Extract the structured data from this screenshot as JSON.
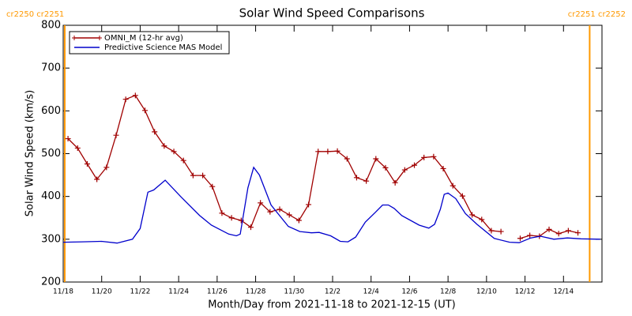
{
  "chart_data": {
    "type": "line",
    "title": "Solar Wind Speed Comparisons",
    "x_label": "Month/Day from 2021-11-18 to 2021-12-15 (UT)",
    "y_label": "Solar Wind Speed (km/s)",
    "xlim": [
      0,
      28
    ],
    "xticks": [
      {
        "value": 0,
        "label": "11/18"
      },
      {
        "value": 2,
        "label": "11/20"
      },
      {
        "value": 4,
        "label": "11/22"
      },
      {
        "value": 6,
        "label": "11/24"
      },
      {
        "value": 8,
        "label": "11/26"
      },
      {
        "value": 10,
        "label": "11/28"
      },
      {
        "value": 12,
        "label": "11/30"
      },
      {
        "value": 14,
        "label": "12/2"
      },
      {
        "value": 16,
        "label": "12/4"
      },
      {
        "value": 18,
        "label": "12/6"
      },
      {
        "value": 20,
        "label": "12/8"
      },
      {
        "value": 22,
        "label": "12/10"
      },
      {
        "value": 24,
        "label": "12/12"
      },
      {
        "value": 26,
        "label": "12/14"
      }
    ],
    "ylim": [
      200,
      800
    ],
    "yticks": [
      200,
      300,
      400,
      500,
      600,
      700,
      800
    ],
    "legend": "upper left",
    "carrington": [
      {
        "x": 0.08,
        "label": "cr2250 cr2251",
        "color": "#ff9900"
      },
      {
        "x": 27.36,
        "label": "cr2251 cr2252",
        "color": "#ff9900"
      }
    ],
    "series": [
      {
        "name": "OMNI_M (12-hr avg)",
        "color": "#a00000",
        "marker": "plus",
        "x": [
          0.25,
          0.75,
          1.25,
          1.75,
          2.25,
          2.75,
          3.25,
          3.75,
          4.25,
          4.75,
          5.25,
          5.75,
          6.25,
          6.75,
          7.25,
          7.75,
          8.25,
          8.75,
          9.25,
          9.75,
          10.25,
          10.75,
          11.25,
          11.75,
          12.25,
          12.75,
          13.25,
          13.75,
          14.25,
          14.75,
          15.25,
          15.75,
          16.25,
          16.75,
          17.25,
          17.75,
          18.25,
          18.75,
          19.25,
          19.75,
          20.25,
          20.75,
          21.25,
          21.75,
          22.25,
          22.75,
          23.25,
          23.75,
          24.25,
          24.75,
          25.25,
          25.75,
          26.25,
          26.75
        ],
        "values": [
          535,
          513,
          476,
          440,
          468,
          543,
          627,
          636,
          601,
          551,
          518,
          505,
          484,
          449,
          449,
          423,
          361,
          350,
          344,
          328,
          385,
          364,
          370,
          357,
          344,
          381,
          505,
          505,
          506,
          488,
          444,
          436,
          488,
          467,
          432,
          462,
          473,
          491,
          493,
          465,
          425,
          401,
          357,
          346,
          320,
          318,
          null,
          302,
          309,
          307,
          323,
          313,
          320,
          315
        ]
      },
      {
        "name": "Predictive Science MAS Model",
        "color": "#0000cc",
        "marker": "none",
        "x": [
          0,
          1,
          2,
          2.8,
          3.6,
          4,
          4.4,
          4.7,
          5.3,
          6.1,
          7.1,
          7.7,
          8.6,
          9,
          9.2,
          9.6,
          9.9,
          10.2,
          10.8,
          11.7,
          12.3,
          12.9,
          13.3,
          13.9,
          14.4,
          14.8,
          15.2,
          15.7,
          16.2,
          16.6,
          16.9,
          17.2,
          17.6,
          18.5,
          19,
          19.3,
          19.6,
          19.8,
          20,
          20.4,
          20.9,
          21.5,
          22.4,
          23.2,
          23.7,
          24.3,
          24.8,
          25.5,
          26.2,
          26.9,
          27.9
        ],
        "values": [
          293,
          294,
          295,
          291,
          300,
          325,
          410,
          415,
          438,
          400,
          355,
          333,
          312,
          308,
          312,
          420,
          468,
          450,
          380,
          330,
          318,
          315,
          316,
          308,
          295,
          294,
          305,
          340,
          362,
          380,
          380,
          372,
          355,
          333,
          326,
          335,
          370,
          405,
          408,
          395,
          360,
          335,
          302,
          293,
          292,
          303,
          307,
          300,
          303,
          301,
          300
        ]
      }
    ]
  }
}
